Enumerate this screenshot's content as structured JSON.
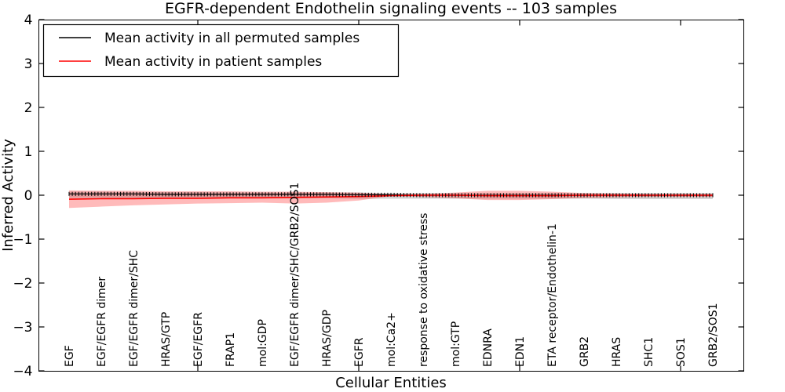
{
  "figure": {
    "title": "EGFR-dependent Endothelin signaling events -- 103 samples",
    "xlabel": "Cellular Entities",
    "ylabel": "Inferred Activity"
  },
  "legend": {
    "entries": [
      {
        "label": "Mean activity in all permuted samples",
        "color": "#000000"
      },
      {
        "label": "Mean activity in patient samples",
        "color": "#ff0000"
      }
    ]
  },
  "chart_data": {
    "type": "line",
    "title": "EGFR-dependent Endothelin signaling events -- 103 samples",
    "xlabel": "Cellular Entities",
    "ylabel": "Inferred Activity",
    "ylim": [
      -4,
      4
    ],
    "yticks": [
      4,
      3,
      2,
      1,
      0,
      -1,
      -2,
      -3,
      -4
    ],
    "x_major_tick_indices": [
      4,
      9,
      14,
      19
    ],
    "grid": false,
    "legend_position": "upper left",
    "categories": [
      "EGF",
      "EGF/EGFR dimer",
      "EGF/EGFR dimer/SHC",
      "HRAS/GTP",
      "EGF/EGFR",
      "FRAP1",
      "mol:GDP",
      "EGF/EGFR dimer/SHC/GRB2/SOS1",
      "HRAS/GDP",
      "EGFR",
      "mol:Ca2+",
      "response to oxidative stress",
      "mol:GTP",
      "EDNRA",
      "EDN1",
      "ETA receptor/Endothelin-1",
      "GRB2",
      "HRAS",
      "SHC1",
      "SOS1",
      "GRB2/SOS1"
    ],
    "series": [
      {
        "name": "Mean activity in all permuted samples",
        "color": "#000000",
        "band_color": "#888888",
        "band_opacity": 0.35,
        "values": [
          0.03,
          0.03,
          0.03,
          0.02,
          0.02,
          0.02,
          0.02,
          0.02,
          0.02,
          0.01,
          0.01,
          0,
          0,
          0,
          0,
          0,
          0,
          0,
          0,
          0,
          0
        ],
        "band_upper": [
          0.08,
          0.08,
          0.07,
          0.07,
          0.07,
          0.06,
          0.06,
          0.06,
          0.06,
          0.06,
          0.05,
          0.05,
          0.05,
          0.05,
          0.05,
          0.05,
          0.05,
          0.05,
          0.05,
          0.05,
          0.05
        ],
        "band_lower": [
          -0.06,
          -0.06,
          -0.06,
          -0.07,
          -0.07,
          -0.07,
          -0.07,
          -0.07,
          -0.07,
          -0.08,
          -0.08,
          -0.08,
          -0.08,
          -0.08,
          -0.08,
          -0.08,
          -0.08,
          -0.09,
          -0.09,
          -0.09,
          -0.09
        ]
      },
      {
        "name": "Mean activity in patient samples",
        "color": "#ff0000",
        "band_color": "#ff0000",
        "band_opacity": 0.27,
        "values": [
          -0.09,
          -0.08,
          -0.08,
          -0.07,
          -0.07,
          -0.06,
          -0.06,
          -0.05,
          -0.04,
          -0.03,
          -0.01,
          0,
          0,
          -0.01,
          -0.01,
          -0.01,
          0,
          0,
          0,
          0,
          0
        ],
        "band_upper": [
          0.11,
          0.1,
          0.1,
          0.09,
          0.09,
          0.09,
          0.08,
          0.08,
          0.07,
          0.06,
          0.02,
          0.03,
          0.06,
          0.1,
          0.1,
          0.08,
          0.05,
          0.04,
          0.03,
          0.03,
          0.03
        ],
        "band_lower": [
          -0.29,
          -0.26,
          -0.23,
          -0.21,
          -0.19,
          -0.18,
          -0.17,
          -0.19,
          -0.17,
          -0.12,
          -0.02,
          -0.04,
          -0.07,
          -0.11,
          -0.11,
          -0.09,
          -0.06,
          -0.05,
          -0.04,
          -0.04,
          -0.04
        ]
      }
    ]
  }
}
